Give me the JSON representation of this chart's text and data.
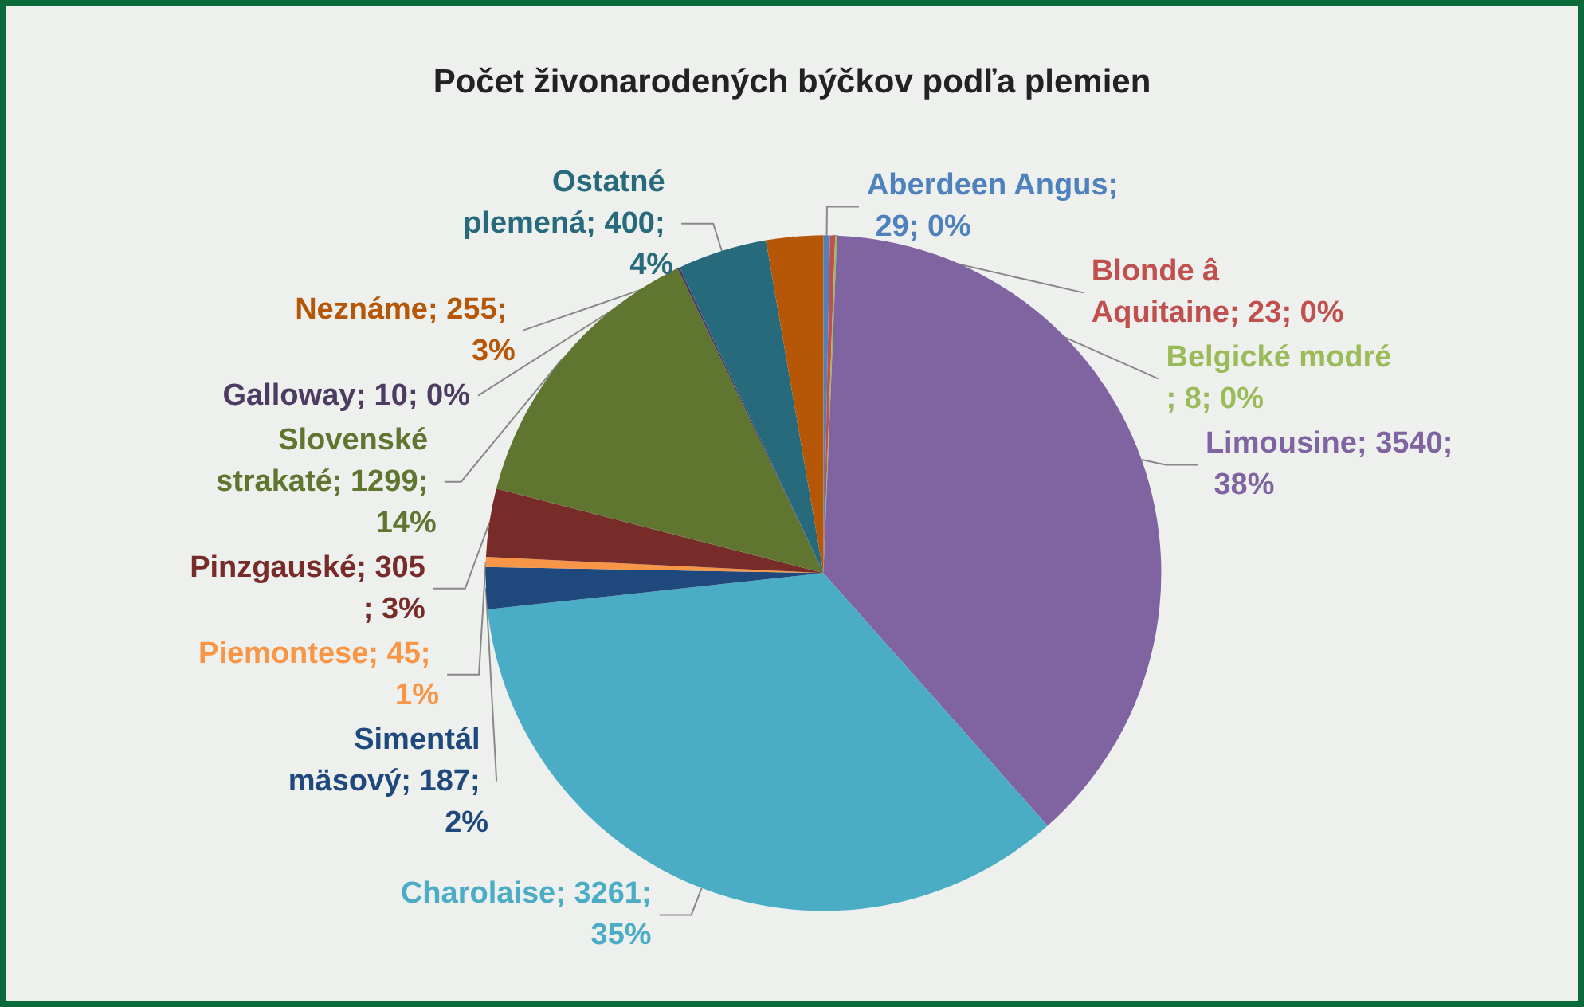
{
  "chart_data": {
    "type": "pie",
    "title": "Počet živonarodených býčkov podľa plemien",
    "categories": [
      "Aberdeen Angus",
      "Blonde â Aquitaine",
      "Belgické modré",
      "Limousine",
      "Charolaise",
      "Simentál mäsový",
      "Piemontese",
      "Pinzgauské",
      "Slovenské strakaté",
      "Galloway",
      "Ostatné plemená",
      "Neznáme"
    ],
    "values": [
      29,
      23,
      8,
      3540,
      3261,
      187,
      45,
      305,
      1299,
      10,
      400,
      255
    ],
    "value_labels": [
      "; 29; 0%",
      "; 23; 0%",
      "; 8; 0%",
      "; 3540; 38%",
      "; 3261; 35%",
      "; 187; 2%",
      "; 45; 1%",
      "; 305; 3%",
      "; 1299; 14%",
      "; 10; 0%",
      "; 400; 4%",
      "; 255; 3%"
    ],
    "colors": [
      "#4f81bd",
      "#c0504d",
      "#9bbb59",
      "#8064a2",
      "#4bacc6",
      "#1f497d",
      "#f79646",
      "#772c2a",
      "#5f7530",
      "#4d3b62",
      "#276a7c",
      "#b65708"
    ],
    "legend": false
  }
}
